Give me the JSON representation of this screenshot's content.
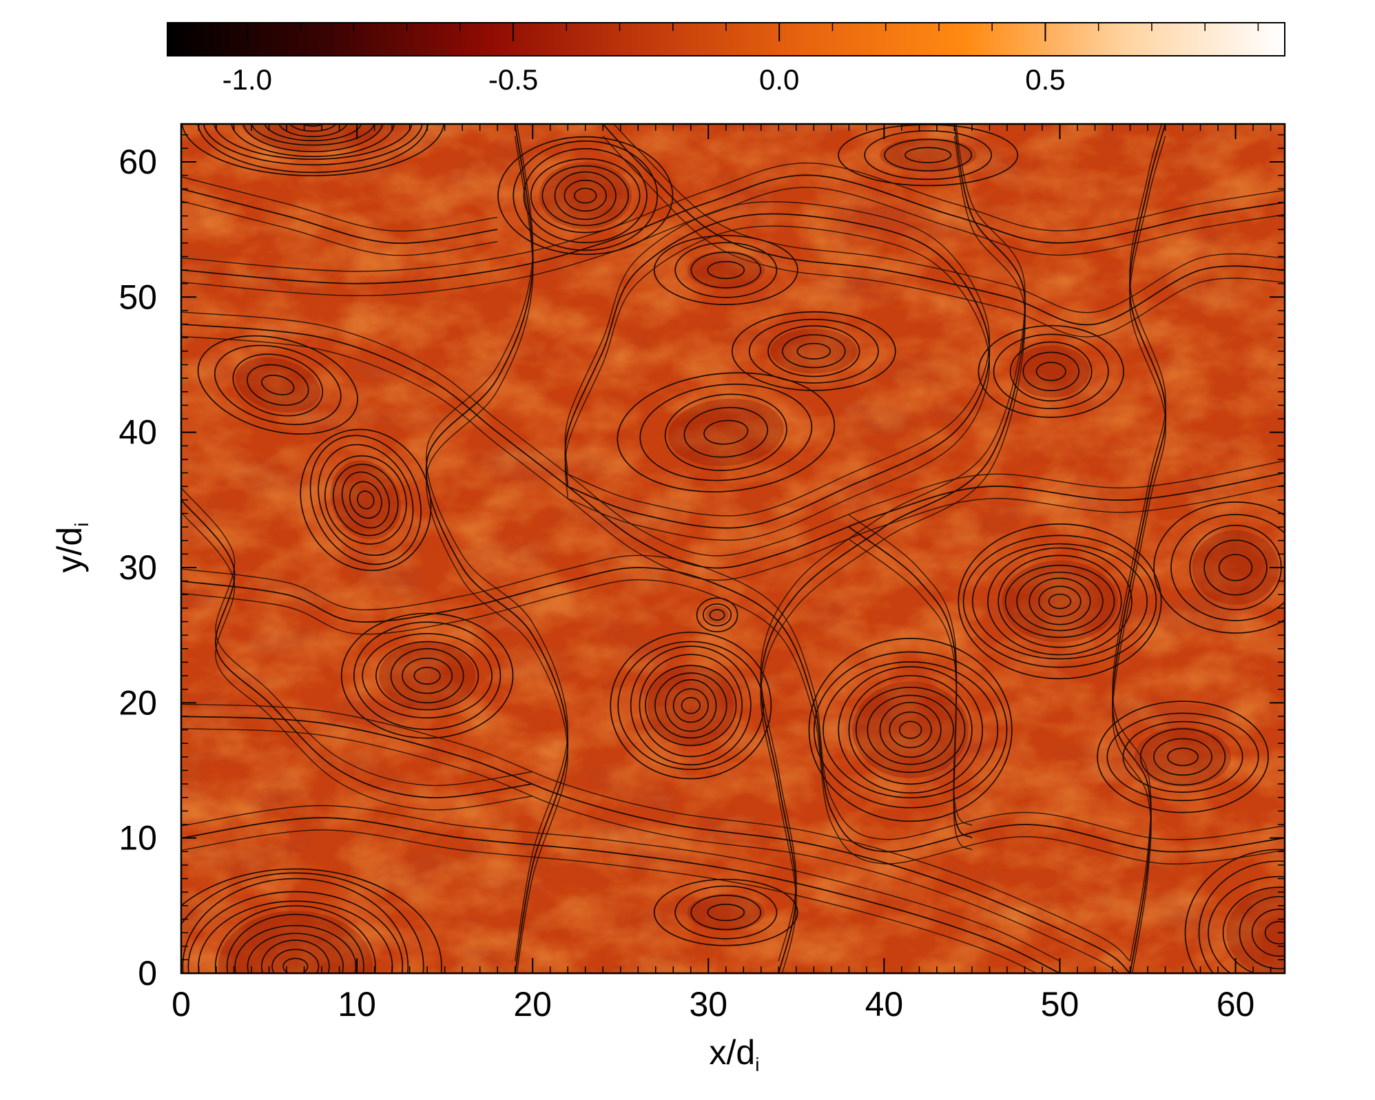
{
  "chart_data": {
    "type": "heatmap",
    "title": "",
    "xlabel": "x/d",
    "xlabel_sub": "i",
    "ylabel": "y/d",
    "ylabel_sub": "i",
    "xlim": [
      0,
      62.8
    ],
    "ylim": [
      0,
      62.8
    ],
    "x_ticks": [
      0,
      10,
      20,
      30,
      40,
      50,
      60
    ],
    "y_ticks": [
      0,
      10,
      20,
      30,
      40,
      50,
      60
    ],
    "x_tick_labels": [
      "0",
      "10",
      "20",
      "30",
      "40",
      "50",
      "60"
    ],
    "y_tick_labels": [
      "0",
      "10",
      "20",
      "30",
      "40",
      "50",
      "60"
    ],
    "colorbar": {
      "orientation": "horizontal",
      "location": "top",
      "range": [
        -1.15,
        0.95
      ],
      "ticks": [
        -1.0,
        -0.5,
        0.0,
        0.5
      ],
      "tick_labels": [
        "-1.0",
        "-0.5",
        "0.0",
        "0.5"
      ],
      "colormap": "hot",
      "colors": [
        "#000000",
        "#3a0303",
        "#8e0b03",
        "#c23a0b",
        "#e8640f",
        "#ff8a12",
        "#ffd3a0",
        "#ffffff"
      ]
    },
    "field_base_color": "#c8400f",
    "contour_color": "#1a0a05",
    "islands": [
      {
        "x": 7.5,
        "y": 63,
        "rx": 7.5,
        "ry": 4,
        "rings": 11,
        "angle": 0
      },
      {
        "x": 23,
        "y": 57.5,
        "rx": 4.8,
        "ry": 4.5,
        "rings": 8,
        "angle": 0
      },
      {
        "x": 31,
        "y": 52,
        "rx": 4,
        "ry": 2.6,
        "rings": 4,
        "angle": 0
      },
      {
        "x": 42.5,
        "y": 60.5,
        "rx": 5,
        "ry": 2.3,
        "rings": 4,
        "angle": 0
      },
      {
        "x": 36,
        "y": 46,
        "rx": 4.5,
        "ry": 3,
        "rings": 5,
        "angle": 0
      },
      {
        "x": 49.5,
        "y": 44.5,
        "rx": 4,
        "ry": 3.5,
        "rings": 5,
        "angle": 0
      },
      {
        "x": 5.5,
        "y": 43.5,
        "rx": 4.5,
        "ry": 3.5,
        "rings": 5,
        "angle": -15
      },
      {
        "x": 31,
        "y": 40,
        "rx": 6,
        "ry": 4.5,
        "rings": 5,
        "angle": 5
      },
      {
        "x": 10.5,
        "y": 35,
        "rx": 3.5,
        "ry": 5.5,
        "rings": 8,
        "angle": 25
      },
      {
        "x": 50,
        "y": 27.5,
        "rx": 6,
        "ry": 5.5,
        "rings": 10,
        "angle": 0
      },
      {
        "x": 60,
        "y": 30,
        "rx": 4.5,
        "ry": 5,
        "rings": 5,
        "angle": 0
      },
      {
        "x": 14,
        "y": 22,
        "rx": 5,
        "ry": 4.5,
        "rings": 7,
        "angle": 0
      },
      {
        "x": 29,
        "y": 19.8,
        "rx": 4.5,
        "ry": 5.5,
        "rings": 9,
        "angle": 0
      },
      {
        "x": 41.5,
        "y": 18,
        "rx": 6,
        "ry": 6.5,
        "rings": 10,
        "angle": 0
      },
      {
        "x": 57,
        "y": 16,
        "rx": 5,
        "ry": 4,
        "rings": 6,
        "angle": 0
      },
      {
        "x": 6.5,
        "y": 0.5,
        "rx": 8,
        "ry": 7.5,
        "rings": 12,
        "angle": 0
      },
      {
        "x": 31,
        "y": 4.5,
        "rx": 4,
        "ry": 2.5,
        "rings": 4,
        "angle": 0
      },
      {
        "x": 62.5,
        "y": 3,
        "rx": 5.5,
        "ry": 6,
        "rings": 7,
        "angle": 0
      },
      {
        "x": 30.5,
        "y": 26.5,
        "rx": 1.2,
        "ry": 1.2,
        "rings": 3,
        "angle": 0
      }
    ],
    "streamlines": [
      [
        [
          0,
          19
        ],
        [
          8,
          18.5
        ],
        [
          16,
          16
        ],
        [
          22,
          13
        ],
        [
          28,
          11
        ],
        [
          36,
          9.5
        ],
        [
          44,
          6.5
        ],
        [
          52,
          2
        ],
        [
          54,
          0
        ]
      ],
      [
        [
          0,
          10
        ],
        [
          8,
          11.5
        ],
        [
          16,
          10
        ],
        [
          24,
          9
        ],
        [
          32,
          7.5
        ],
        [
          40,
          5
        ],
        [
          46,
          2.5
        ],
        [
          50,
          0
        ]
      ],
      [
        [
          0,
          52
        ],
        [
          10,
          51
        ],
        [
          18,
          52
        ],
        [
          24,
          54
        ],
        [
          30,
          57
        ],
        [
          36,
          59
        ],
        [
          44,
          56
        ],
        [
          50,
          54
        ],
        [
          58,
          56
        ],
        [
          62.8,
          57
        ]
      ],
      [
        [
          0,
          48
        ],
        [
          8,
          47
        ],
        [
          14,
          44
        ],
        [
          18,
          40
        ],
        [
          22,
          36
        ],
        [
          26,
          32
        ],
        [
          30,
          30
        ],
        [
          34,
          31
        ],
        [
          40,
          34
        ],
        [
          46,
          36
        ],
        [
          54,
          35
        ],
        [
          62.8,
          37
        ]
      ],
      [
        [
          0,
          29
        ],
        [
          6,
          28
        ],
        [
          10,
          26
        ],
        [
          16,
          27
        ],
        [
          22,
          29
        ],
        [
          26,
          30
        ],
        [
          30,
          29
        ],
        [
          34,
          26
        ],
        [
          36,
          20
        ],
        [
          37,
          12
        ],
        [
          40,
          9
        ],
        [
          48,
          11
        ],
        [
          56,
          9
        ],
        [
          62.8,
          10
        ]
      ],
      [
        [
          19,
          62.8
        ],
        [
          20,
          52
        ],
        [
          18,
          44
        ],
        [
          14,
          38
        ],
        [
          16,
          30
        ],
        [
          20,
          25
        ],
        [
          22,
          17
        ],
        [
          20,
          8
        ],
        [
          19,
          0
        ]
      ],
      [
        [
          34,
          0
        ],
        [
          35,
          6
        ],
        [
          34,
          14
        ],
        [
          33,
          22
        ],
        [
          35,
          28
        ],
        [
          40,
          33
        ],
        [
          46,
          38
        ],
        [
          48,
          50
        ],
        [
          45,
          56
        ],
        [
          44,
          62.8
        ]
      ],
      [
        [
          54,
          0
        ],
        [
          55,
          8
        ],
        [
          55,
          14
        ],
        [
          53,
          20
        ],
        [
          55,
          35
        ],
        [
          56,
          42
        ],
        [
          54,
          50
        ],
        [
          55,
          58
        ],
        [
          56,
          62.8
        ]
      ],
      [
        [
          0,
          35
        ],
        [
          3,
          30
        ],
        [
          2,
          24
        ],
        [
          5,
          20
        ],
        [
          9,
          15
        ],
        [
          14,
          13
        ],
        [
          20,
          14
        ]
      ],
      [
        [
          24,
          62.8
        ],
        [
          26,
          60
        ],
        [
          30,
          55
        ],
        [
          34,
          53
        ],
        [
          40,
          52
        ],
        [
          47,
          50
        ],
        [
          52,
          48
        ],
        [
          58,
          52
        ],
        [
          62.8,
          52
        ]
      ],
      [
        [
          0,
          58
        ],
        [
          6,
          56
        ],
        [
          12,
          54
        ],
        [
          18,
          55
        ]
      ],
      [
        [
          38,
          33
        ],
        [
          42,
          29
        ],
        [
          44,
          24
        ],
        [
          44,
          12
        ],
        [
          45,
          10
        ]
      ],
      [
        [
          22,
          36
        ],
        [
          26,
          34
        ],
        [
          32,
          33
        ],
        [
          38,
          36
        ],
        [
          44,
          40
        ],
        [
          46,
          46
        ],
        [
          44,
          52
        ],
        [
          40,
          55
        ],
        [
          32,
          56
        ],
        [
          26,
          52
        ],
        [
          24,
          46
        ],
        [
          22,
          40
        ],
        [
          22,
          36
        ]
      ]
    ]
  }
}
